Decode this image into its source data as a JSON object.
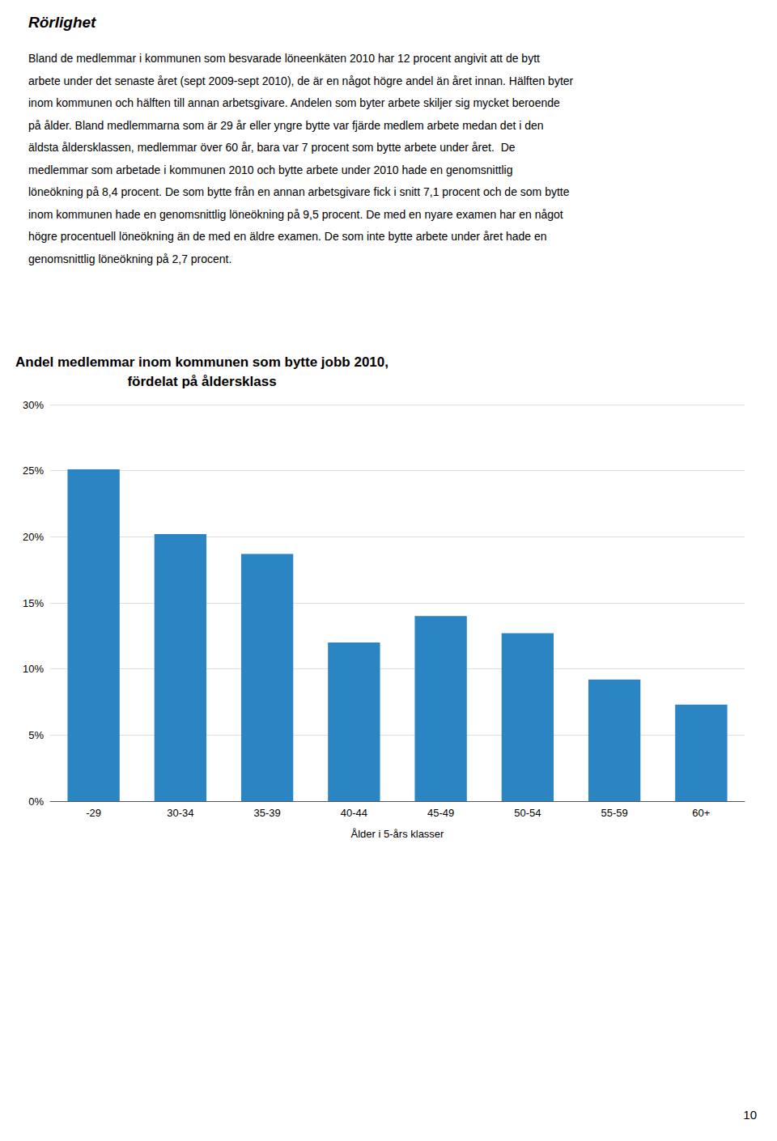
{
  "heading": "Rörlighet",
  "body_lines": [
    "Bland de medlemmar i kommunen som besvarade löneenkäten 2010 har 12 procent angivit att de bytt",
    "arbete under det senaste året (sept 2009-sept 2010), de är en något högre andel än året innan. Hälften byter",
    "inom kommunen och hälften till annan arbetsgivare. Andelen som byter arbete skiljer sig mycket beroende",
    "på ålder. Bland medlemmarna som är 29 år eller yngre bytte var fjärde medlem arbete medan det i den",
    "äldsta åldersklassen, medlemmar över 60 år, bara var 7 procent som bytte arbete under året.  De",
    "medlemmar som arbetade i kommunen 2010 och bytte arbete under 2010 hade en genomsnittlig",
    "löneökning på 8,4 procent. De som bytte från en annan arbetsgivare fick i snitt 7,1 procent och de som bytte",
    "inom kommunen hade en genomsnittlig löneökning på 9,5 procent. De med en nyare examen har en något",
    "högre procentuell löneökning än de med en äldre examen. De som inte bytte arbete under året hade en",
    "genomsnittlig löneökning på 2,7 procent."
  ],
  "page_number": "10",
  "chart_data": {
    "type": "bar",
    "title": "Andel medlemmar inom kommunen som bytte jobb 2010,\nfördelat på åldersklass",
    "xlabel": "Ålder i 5-års klasser",
    "categories": [
      "-29",
      "30-34",
      "35-39",
      "40-44",
      "45-49",
      "50-54",
      "55-59",
      "60+"
    ],
    "values": [
      0.251,
      0.202,
      0.187,
      0.12,
      0.14,
      0.127,
      0.092,
      0.073
    ],
    "color": "#2B85C2",
    "ylim": [
      0,
      0.3
    ],
    "yticks": [
      {
        "value": 0,
        "label": "0%"
      },
      {
        "value": 0.05,
        "label": "5%"
      },
      {
        "value": 0.1,
        "label": "10%"
      },
      {
        "value": 0.15,
        "label": "15%"
      },
      {
        "value": 0.2,
        "label": "20%"
      },
      {
        "value": 0.25,
        "label": "25%"
      },
      {
        "value": 0.3,
        "label": "30%"
      }
    ],
    "grid": true
  }
}
